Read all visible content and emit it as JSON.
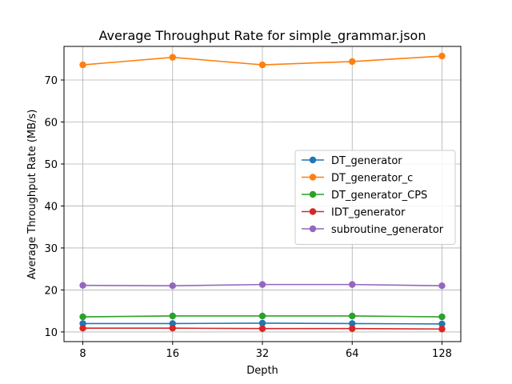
{
  "chart_data": {
    "type": "line",
    "title": "Average Throughput Rate for simple_grammar.json",
    "xlabel": "Depth",
    "ylabel": "Average Throughput Rate (MB/s)",
    "x_scale": "log2",
    "x": [
      8,
      16,
      32,
      64,
      128
    ],
    "x_tick_labels": [
      "8",
      "16",
      "32",
      64,
      "128"
    ],
    "y_ticks": [
      10,
      20,
      30,
      40,
      50,
      60,
      70
    ],
    "ylim": [
      7.7,
      78.0
    ],
    "grid": true,
    "legend_position": "center-right",
    "series": [
      {
        "name": "DT_generator",
        "color": "#1f77b4",
        "values": [
          12.0,
          12.0,
          12.1,
          12.0,
          11.9
        ]
      },
      {
        "name": "DT_generator_c",
        "color": "#ff7f0e",
        "values": [
          73.6,
          75.4,
          73.6,
          74.4,
          75.7
        ]
      },
      {
        "name": "DT_generator_CPS",
        "color": "#2ca02c",
        "values": [
          13.6,
          13.8,
          13.8,
          13.8,
          13.6
        ]
      },
      {
        "name": "IDT_generator",
        "color": "#d62728",
        "values": [
          10.9,
          10.9,
          10.8,
          10.8,
          10.7
        ]
      },
      {
        "name": "subroutine_generator",
        "color": "#9467bd",
        "values": [
          21.1,
          21.0,
          21.3,
          21.3,
          21.0
        ]
      }
    ]
  }
}
